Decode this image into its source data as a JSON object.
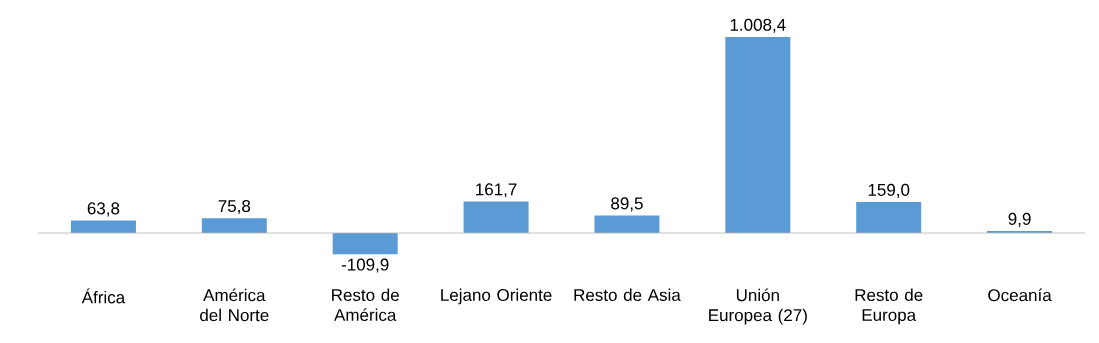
{
  "chart_data": {
    "type": "bar",
    "categories": [
      "África",
      "América del Norte",
      "Resto de América",
      "Lejano Oriente",
      "Resto de Asia",
      "Unión Europea (27)",
      "Resto de Europa",
      "Oceanía"
    ],
    "values": [
      63.8,
      75.8,
      -109.9,
      161.7,
      89.5,
      1008.4,
      159.0,
      9.9
    ],
    "value_labels": [
      "63,8",
      "75,8",
      "-109,9",
      "161,7",
      "89,5",
      "1.008,4",
      "159,0",
      "9,9"
    ],
    "color": "#5b9bd5"
  }
}
